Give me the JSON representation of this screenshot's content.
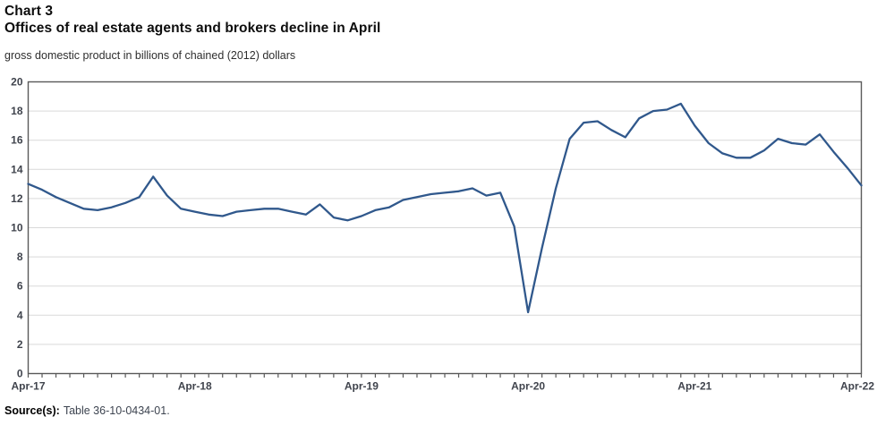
{
  "header": {
    "chart_label": "Chart 3",
    "title": "Offices of real estate agents and brokers decline in April",
    "subtitle": "gross domestic product in billions of chained (2012) dollars"
  },
  "footer": {
    "source_label": "Source(s):",
    "source_value": "Table 36-10-0434-01."
  },
  "colors": {
    "line": "#30588c",
    "grid": "#d9d9d9",
    "axis": "#595959",
    "tick_text": "#40444d"
  },
  "chart_data": {
    "type": "line",
    "title": "Offices of real estate agents and brokers decline in April",
    "subtitle": "gross domestic product in billions of chained (2012) dollars",
    "ylabel": "billions of chained (2012) dollars",
    "ylim": [
      0,
      20
    ],
    "y_ticks": [
      0,
      2,
      4,
      6,
      8,
      10,
      12,
      14,
      16,
      18,
      20
    ],
    "grid": "horizontal",
    "legend_position": "none",
    "x_tick_labels": [
      "Apr-17",
      "Apr-18",
      "Apr-19",
      "Apr-20",
      "Apr-21",
      "Apr-22"
    ],
    "x_tick_indices": [
      0,
      12,
      24,
      36,
      48,
      60
    ],
    "x": [
      "Apr-17",
      "May-17",
      "Jun-17",
      "Jul-17",
      "Aug-17",
      "Sep-17",
      "Oct-17",
      "Nov-17",
      "Dec-17",
      "Jan-18",
      "Feb-18",
      "Mar-18",
      "Apr-18",
      "May-18",
      "Jun-18",
      "Jul-18",
      "Aug-18",
      "Sep-18",
      "Oct-18",
      "Nov-18",
      "Dec-18",
      "Jan-19",
      "Feb-19",
      "Mar-19",
      "Apr-19",
      "May-19",
      "Jun-19",
      "Jul-19",
      "Aug-19",
      "Sep-19",
      "Oct-19",
      "Nov-19",
      "Dec-19",
      "Jan-20",
      "Feb-20",
      "Mar-20",
      "Apr-20",
      "May-20",
      "Jun-20",
      "Jul-20",
      "Aug-20",
      "Sep-20",
      "Oct-20",
      "Nov-20",
      "Dec-20",
      "Jan-21",
      "Feb-21",
      "Mar-21",
      "Apr-21",
      "May-21",
      "Jun-21",
      "Jul-21",
      "Aug-21",
      "Sep-21",
      "Oct-21",
      "Nov-21",
      "Dec-21",
      "Jan-22",
      "Feb-22",
      "Mar-22",
      "Apr-22"
    ],
    "series": [
      {
        "name": "Offices of real estate agents and brokers",
        "values": [
          13.0,
          12.6,
          12.1,
          11.7,
          11.3,
          11.2,
          11.4,
          11.7,
          12.1,
          13.5,
          12.2,
          11.3,
          11.1,
          10.9,
          10.8,
          11.1,
          11.2,
          11.3,
          11.3,
          11.1,
          10.9,
          11.6,
          10.7,
          10.5,
          10.8,
          11.2,
          11.4,
          11.9,
          12.1,
          12.3,
          12.4,
          12.5,
          12.7,
          12.2,
          12.4,
          10.1,
          4.2,
          8.6,
          12.7,
          16.1,
          17.2,
          17.3,
          16.7,
          16.2,
          17.5,
          18.0,
          18.1,
          18.5,
          17.0,
          15.8,
          15.1,
          14.8,
          14.8,
          15.3,
          16.1,
          15.8,
          15.7,
          16.4,
          15.2,
          14.1,
          12.9
        ]
      }
    ]
  }
}
